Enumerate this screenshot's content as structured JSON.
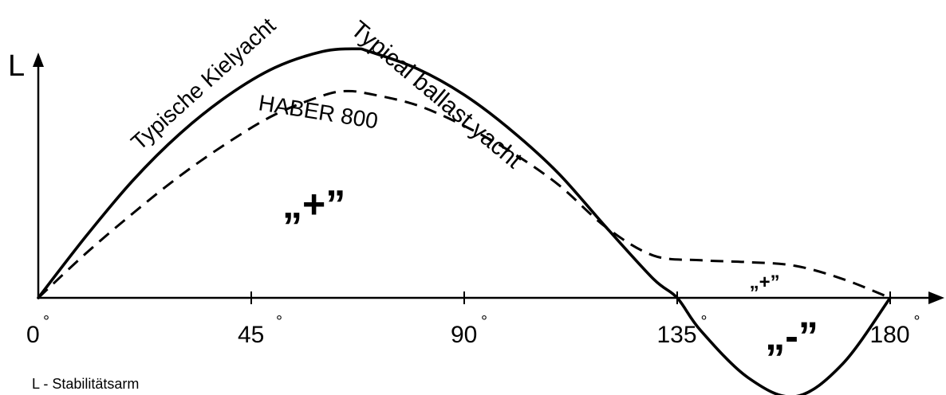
{
  "chart_data": {
    "type": "line",
    "x_ticks": [
      {
        "value": 0,
        "label": "0"
      },
      {
        "value": 45,
        "label": "45"
      },
      {
        "value": 90,
        "label": "90"
      },
      {
        "value": 135,
        "label": "135"
      },
      {
        "value": 180,
        "label": "180"
      }
    ],
    "degree_symbol": "°",
    "ylabel": "L",
    "xlim": [
      0,
      190
    ],
    "ylim": [
      -1.2,
      3.0
    ],
    "series": [
      {
        "name_lines": [
          "Typische Kielyacht",
          "Typical ballast yacht"
        ],
        "style": "solid",
        "x": [
          0,
          10,
          20,
          30,
          40,
          50,
          60,
          67,
          70,
          80,
          90,
          100,
          110,
          120,
          130,
          135,
          140,
          150,
          160,
          170,
          180
        ],
        "y": [
          0,
          0.65,
          1.25,
          1.75,
          2.15,
          2.45,
          2.62,
          2.65,
          2.62,
          2.44,
          2.16,
          1.78,
          1.32,
          0.75,
          0.2,
          0,
          -0.35,
          -0.85,
          -1.05,
          -0.7,
          0
        ]
      },
      {
        "name": "HABER 800",
        "style": "dashed",
        "x": [
          0,
          10,
          20,
          30,
          40,
          50,
          60,
          65,
          70,
          80,
          90,
          100,
          110,
          120,
          130,
          140,
          150,
          160,
          170,
          180
        ],
        "y": [
          0,
          0.47,
          0.9,
          1.3,
          1.65,
          1.95,
          2.15,
          2.2,
          2.17,
          2.05,
          1.83,
          1.55,
          1.2,
          0.75,
          0.45,
          0.4,
          0.38,
          0.34,
          0.2,
          0
        ]
      }
    ],
    "region_labels": [
      {
        "text": "„+”",
        "x": 60,
        "y": 0.85,
        "size": "big"
      },
      {
        "text": "„+”",
        "x": 155,
        "y": 0.1,
        "size": "small"
      },
      {
        "text": "„-”",
        "x": 162,
        "y": -0.55,
        "size": "big"
      }
    ],
    "footnote": "L - Stabilitätsarm"
  }
}
